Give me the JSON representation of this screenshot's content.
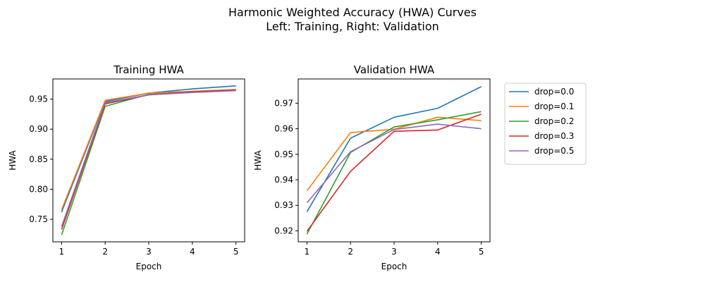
{
  "figure": {
    "title_line1": "Harmonic Weighted Accuracy (HWA) Curves",
    "title_line2": "Left: Training, Right: Validation"
  },
  "chart_data": [
    {
      "type": "line",
      "title": "Training HWA",
      "xlabel": "Epoch",
      "ylabel": "HWA",
      "x": [
        1,
        2,
        3,
        4,
        5
      ],
      "xticks": [
        1,
        2,
        3,
        4,
        5
      ],
      "yticks": [
        0.75,
        0.8,
        0.85,
        0.9,
        0.95
      ],
      "ytick_labels": [
        "0.75",
        "0.80",
        "0.85",
        "0.90",
        "0.95"
      ],
      "xlim": [
        0.8,
        5.2
      ],
      "ylim": [
        0.7125,
        0.9835
      ],
      "grid": false,
      "series": [
        {
          "name": "drop=0.0",
          "color": "#1f77b4",
          "values": [
            0.762,
            0.946,
            0.96,
            0.967,
            0.972
          ]
        },
        {
          "name": "drop=0.1",
          "color": "#ff7f0e",
          "values": [
            0.766,
            0.948,
            0.96,
            0.963,
            0.966
          ]
        },
        {
          "name": "drop=0.2",
          "color": "#2ca02c",
          "values": [
            0.724,
            0.938,
            0.958,
            0.962,
            0.965
          ]
        },
        {
          "name": "drop=0.3",
          "color": "#d62728",
          "values": [
            0.733,
            0.942,
            0.957,
            0.962,
            0.965
          ]
        },
        {
          "name": "drop=0.5",
          "color": "#9467bd",
          "values": [
            0.738,
            0.944,
            0.957,
            0.961,
            0.964
          ]
        }
      ]
    },
    {
      "type": "line",
      "title": "Validation HWA",
      "xlabel": "Epoch",
      "ylabel": "HWA",
      "x": [
        1,
        2,
        3,
        4,
        5
      ],
      "xticks": [
        1,
        2,
        3,
        4,
        5
      ],
      "yticks": [
        0.92,
        0.93,
        0.94,
        0.95,
        0.96,
        0.97
      ],
      "ytick_labels": [
        "0.92",
        "0.93",
        "0.94",
        "0.95",
        "0.96",
        "0.97"
      ],
      "xlim": [
        0.8,
        5.2
      ],
      "ylim": [
        0.9157,
        0.9795
      ],
      "grid": false,
      "legend": "outside-right",
      "series": [
        {
          "name": "drop=0.0",
          "color": "#1f77b4",
          "values": [
            0.9275,
            0.9563,
            0.9645,
            0.968,
            0.9765
          ]
        },
        {
          "name": "drop=0.1",
          "color": "#ff7f0e",
          "values": [
            0.9357,
            0.9585,
            0.9598,
            0.9645,
            0.9632
          ]
        },
        {
          "name": "drop=0.2",
          "color": "#2ca02c",
          "values": [
            0.9187,
            0.9507,
            0.9607,
            0.9635,
            0.9667
          ]
        },
        {
          "name": "drop=0.3",
          "color": "#d62728",
          "values": [
            0.9198,
            0.9433,
            0.959,
            0.9595,
            0.9657
          ]
        },
        {
          "name": "drop=0.5",
          "color": "#9467bd",
          "values": [
            0.931,
            0.951,
            0.9597,
            0.9618,
            0.96
          ]
        }
      ]
    }
  ]
}
